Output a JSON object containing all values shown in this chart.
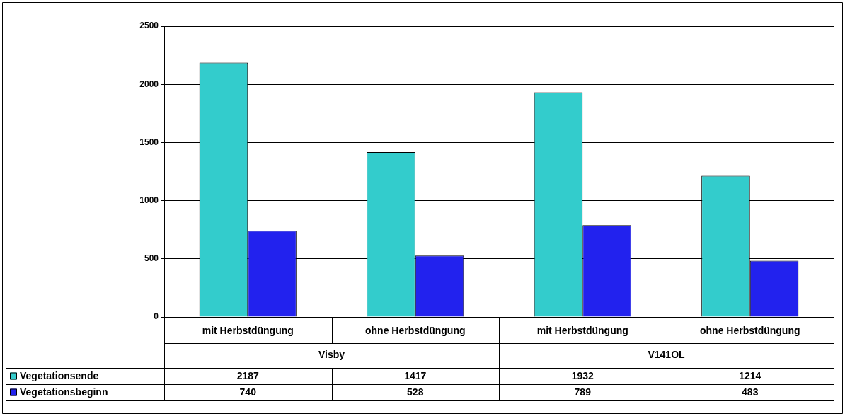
{
  "chart_data": {
    "type": "bar",
    "categories": [
      "mit Herbstdüngung",
      "ohne Herbstdüngung",
      "mit Herbstdüngung",
      "ohne Herbstdüngung"
    ],
    "series": [
      {
        "name": "Vegetationsende",
        "color": "#33cccc",
        "values": [
          2187,
          1417,
          1932,
          1214
        ]
      },
      {
        "name": "Vegetationsbeginn",
        "color": "#2222ee",
        "values": [
          740,
          528,
          789,
          483
        ]
      }
    ],
    "annotations": [
      "Visby",
      "V141OL"
    ],
    "ylim": [
      0,
      2500
    ],
    "yticks": [
      0,
      500,
      1000,
      1500,
      2000,
      2500
    ],
    "grid": "y",
    "legend": "bottom",
    "data_labels": true
  }
}
